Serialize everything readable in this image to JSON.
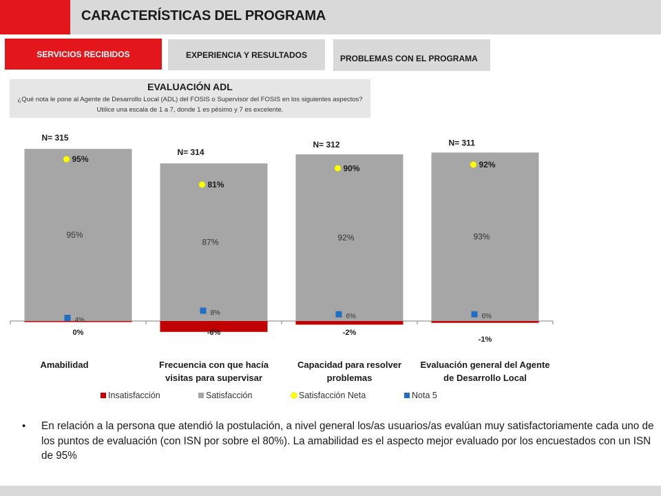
{
  "header": {
    "title": "CARACTERÍSTICAS DEL PROGRAMA"
  },
  "tabs": [
    {
      "label": "SERVICIOS RECIBIDOS",
      "active": true
    },
    {
      "label": "EXPERIENCIA Y RESULTADOS",
      "active": false
    },
    {
      "label": "PROBLEMAS CON EL PROGRAMA",
      "active": false
    }
  ],
  "evaluation": {
    "title": "EVALUACIÓN ADL",
    "question": "¿Qué nota le pone al Agente de Desarrollo Local (ADL) del FOSIS o Supervisor del FOSIS en los siguientes aspectos? Utilice una escala de 1 a 7, donde 1 es pésimo y 7 es excelente."
  },
  "colors": {
    "accent_red": "#e3161b",
    "insatisfaccion": "#c00000",
    "satisfaccion": "#a6a6a6",
    "satisfaccion_neta": "#ffff00",
    "nota5": "#1f6fc5"
  },
  "chart_data": {
    "type": "bar",
    "categories": [
      "Amabilidad",
      "Frecuencia con que hacía visitas para supervisar",
      "Capacidad para resolver problemas",
      "Evaluación general del Agente de Desarrollo Local"
    ],
    "category_lines": [
      [
        "Amabilidad"
      ],
      [
        "Frecuencia con que hacía",
        "visitas para supervisar"
      ],
      [
        "Capacidad para resolver",
        "problemas"
      ],
      [
        "Evaluación general del Agente",
        "de Desarrollo Local"
      ]
    ],
    "n_labels": [
      "N= 315",
      "N= 314",
      "N= 312",
      "N= 311"
    ],
    "series": [
      {
        "name": "Insatisfacción",
        "values": [
          0,
          -6,
          -2,
          -1
        ],
        "labels": [
          "0%",
          "-6%",
          "-2%",
          "-1%"
        ]
      },
      {
        "name": "Satisfacción",
        "values": [
          95,
          87,
          92,
          93
        ],
        "labels": [
          "95%",
          "87%",
          "92%",
          "93%"
        ]
      },
      {
        "name": "Satisfacción Neta",
        "values": [
          95,
          81,
          90,
          92
        ],
        "labels": [
          "95%",
          "81%",
          "90%",
          "92%"
        ]
      },
      {
        "name": "Nota 5",
        "values": [
          4,
          8,
          6,
          6
        ],
        "labels": [
          "4%",
          "8%",
          "6%",
          "6%"
        ]
      }
    ],
    "legend": [
      "Insatisfacción",
      "Satisfacción",
      "Satisfacción Neta",
      "Nota 5"
    ],
    "legend_position": "bottom",
    "ylim": [
      -6,
      95
    ],
    "grid": false
  },
  "body": {
    "bullet": "•",
    "text": "En relación a la persona que atendió la postulación, a nivel general los/as usuarios/as evalúan muy satisfactoriamente cada uno de los puntos de evaluación (con ISN por sobre el 80%). La amabilidad es el aspecto mejor evaluado por los encuestados con un ISN de 95%"
  }
}
